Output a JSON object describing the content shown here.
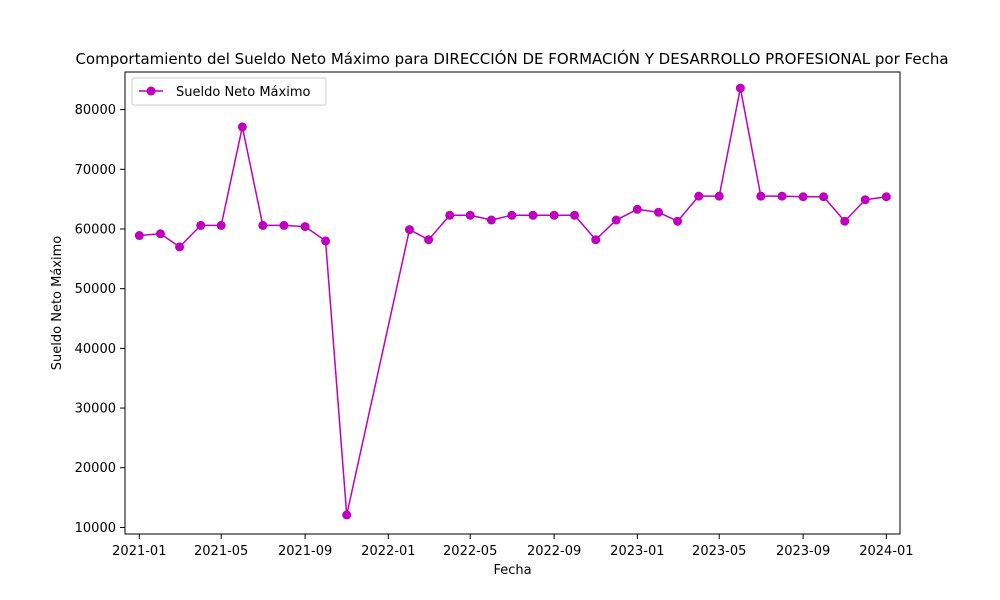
{
  "chart_data": {
    "type": "line",
    "title": "Comportamiento del Sueldo Neto Máximo para DIRECCIÓN DE FORMACIÓN Y DESARROLLO PROFESIONAL por Fecha",
    "xlabel": "Fecha",
    "ylabel": "Sueldo Neto Máximo",
    "x_tick_labels": [
      "2021-01",
      "2021-05",
      "2021-09",
      "2022-01",
      "2022-05",
      "2022-09",
      "2023-01",
      "2023-05",
      "2023-09",
      "2024-01"
    ],
    "y_ticks": [
      10000,
      20000,
      30000,
      40000,
      50000,
      60000,
      70000,
      80000
    ],
    "ylim": [
      8900,
      86300
    ],
    "xlim": [
      "2020-12-11",
      "2024-01-21"
    ],
    "grid": false,
    "legend_position": "top-left",
    "series": [
      {
        "name": "Sueldo Neto Máximo",
        "color": "#bf00bf",
        "marker": "circle",
        "x": [
          "2021-01-01",
          "2021-02-01",
          "2021-03-01",
          "2021-04-01",
          "2021-05-01",
          "2021-06-01",
          "2021-07-01",
          "2021-08-01",
          "2021-09-01",
          "2021-10-01",
          "2021-11-01",
          "2022-02-01",
          "2022-03-01",
          "2022-04-01",
          "2022-05-01",
          "2022-06-01",
          "2022-07-01",
          "2022-08-01",
          "2022-09-01",
          "2022-10-01",
          "2022-11-01",
          "2022-12-01",
          "2023-01-01",
          "2023-02-01",
          "2023-03-01",
          "2023-04-01",
          "2023-05-01",
          "2023-06-01",
          "2023-07-01",
          "2023-08-01",
          "2023-09-01",
          "2023-10-01",
          "2023-11-01",
          "2023-12-01",
          "2024-01-01"
        ],
        "values": [
          58900,
          59200,
          57000,
          60600,
          60600,
          77100,
          60600,
          60600,
          60400,
          58000,
          12100,
          59900,
          58200,
          62300,
          62300,
          61500,
          62300,
          62300,
          62300,
          62300,
          58200,
          61500,
          63300,
          62800,
          61300,
          65500,
          65500,
          83600,
          65500,
          65500,
          65400,
          65400,
          61300,
          64900,
          65400
        ]
      }
    ]
  }
}
